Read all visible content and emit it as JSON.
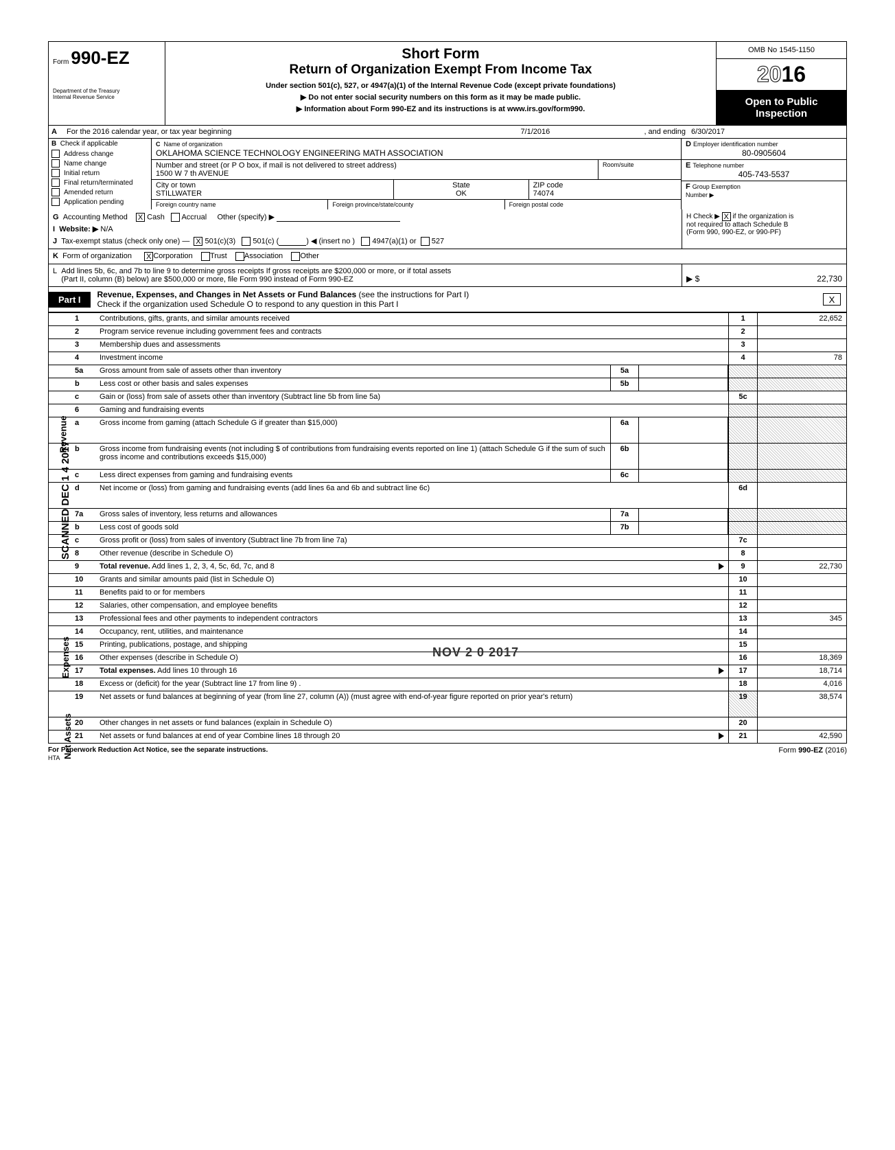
{
  "form": {
    "form_label": "Form",
    "form_number": "990-EZ",
    "dept1": "Department of the Treasury",
    "dept2": "Internal Revenue Service",
    "short_form": "Short Form",
    "main_title": "Return of Organization Exempt From Income Tax",
    "sub1": "Under section 501(c), 527, or 4947(a)(1) of the Internal Revenue Code (except private foundations)",
    "sub2": "Do not enter social security numbers on this form as it may be made public.",
    "sub3": "Information about Form 990-EZ and its instructions is at www.irs.gov/form990.",
    "omb": "OMB No 1545-1150",
    "year": "2016",
    "open_public1": "Open to Public",
    "open_public2": "Inspection"
  },
  "rowA": {
    "label": "A",
    "txt": "For the 2016 calendar year, or tax year beginning",
    "date1": "7/1/2016",
    "mid": ", and ending",
    "date2": "6/30/2017"
  },
  "colB": {
    "label": "B",
    "head": "Check if applicable",
    "items": [
      "Address change",
      "Name change",
      "Initial return",
      "Final return/terminated",
      "Amended return",
      "Application pending"
    ]
  },
  "colC": {
    "label": "C",
    "name_lbl": "Name of organization",
    "name": "OKLAHOMA SCIENCE TECHNOLOGY ENGINEERING MATH ASSOCIATION",
    "addr_lbl": "Number and street (or P O box, if mail is not delivered to street address)",
    "room_lbl": "Room/suite",
    "addr": "1500 W 7 th AVENUE",
    "city_lbl": "City or town",
    "state_lbl": "State",
    "zip_lbl": "ZIP code",
    "city": "STILLWATER",
    "state": "OK",
    "zip": "74074",
    "fc_lbl": "Foreign country name",
    "fp_lbl": "Foreign province/state/county",
    "fz_lbl": "Foreign postal code"
  },
  "colD": {
    "d_lbl": "D",
    "d_txt": "Employer identification number",
    "ein": "80-0905604",
    "e_lbl": "E",
    "e_txt": "Telephone number",
    "phone": "405-743-5537",
    "f_lbl": "F",
    "f_txt": "Group Exemption",
    "f_txt2": "Number ▶"
  },
  "rowG": {
    "g_lbl": "G",
    "g_txt": "Accounting Method",
    "cash": "Cash",
    "accrual": "Accrual",
    "other": "Other (specify) ▶",
    "i_lbl": "I",
    "i_txt": "Website: ▶",
    "website": "N/A",
    "j_lbl": "J",
    "j_txt": "Tax-exempt status (check only one) —",
    "j1": "501(c)(3)",
    "j2": "501(c) (",
    "j3": ") ◀ (insert no )",
    "j4": "4947(a)(1) or",
    "j5": "527",
    "h_lbl": "H",
    "h_txt1": "Check ▶",
    "h_txt2": "if the organization is",
    "h_txt3": "not required to attach Schedule B",
    "h_txt4": "(Form 990, 990-EZ, or 990-PF)"
  },
  "rowK": {
    "k_lbl": "K",
    "k_txt": "Form of organization",
    "corp": "Corporation",
    "trust": "Trust",
    "assoc": "Association",
    "other": "Other"
  },
  "rowL": {
    "l_lbl": "L",
    "l_txt1": "Add lines 5b, 6c, and 7b to line 9 to determine gross receipts  If gross receipts are $200,000 or more, or if total assets",
    "l_txt2": "(Part II, column (B) below) are $500,000 or more, file Form 990 instead of Form 990-EZ",
    "sym": "▶ $",
    "amt": "22,730"
  },
  "part1": {
    "label": "Part I",
    "title": "Revenue, Expenses, and Changes in Net Assets or Fund Balances",
    "paren": "(see the instructions for Part I)",
    "check_txt": "Check if the organization used Schedule O to respond to any question in this Part I",
    "check_val": "X"
  },
  "side_labels": {
    "rev": "Revenue",
    "exp": "Expenses",
    "net": "Net Assets",
    "scanned": "SCANNED DEC 1 4 2017"
  },
  "lines": [
    {
      "n": "1",
      "d": "Contributions, gifts, grants, and similar amounts received",
      "en": "1",
      "ev": "22,652"
    },
    {
      "n": "2",
      "d": "Program service revenue including government fees and contracts",
      "en": "2",
      "ev": ""
    },
    {
      "n": "3",
      "d": "Membership dues and assessments",
      "en": "3",
      "ev": ""
    },
    {
      "n": "4",
      "d": "Investment income",
      "en": "4",
      "ev": "78"
    },
    {
      "n": "5a",
      "d": "Gross amount from sale of assets other than inventory",
      "mn": "5a",
      "mv": "",
      "en": "",
      "ev": "",
      "shade": true
    },
    {
      "n": "b",
      "d": "Less  cost or other basis and sales expenses",
      "mn": "5b",
      "mv": "",
      "en": "",
      "ev": "",
      "shade": true
    },
    {
      "n": "c",
      "d": "Gain or (loss) from sale of assets other than inventory (Subtract line 5b from line 5a)",
      "en": "5c",
      "ev": ""
    },
    {
      "n": "6",
      "d": "Gaming and fundraising events",
      "en": "",
      "ev": "",
      "shade": true
    },
    {
      "n": "a",
      "d": "Gross income from gaming (attach Schedule G if greater than $15,000)",
      "mn": "6a",
      "mv": "",
      "en": "",
      "ev": "",
      "shade": true,
      "tall": true
    },
    {
      "n": "b",
      "d": "Gross income from fundraising events (not including    $            of contributions from fundraising events reported on line 1) (attach Schedule G if the sum of such gross income and contributions exceeds $15,000)",
      "mn": "6b",
      "mv": "",
      "en": "",
      "ev": "",
      "shade": true,
      "tall": true
    },
    {
      "n": "c",
      "d": "Less  direct expenses from gaming and fundraising events",
      "mn": "6c",
      "mv": "",
      "en": "",
      "ev": "",
      "shade": true
    },
    {
      "n": "d",
      "d": "Net income or (loss) from gaming and fundraising events (add lines 6a and 6b and subtract line 6c)",
      "en": "6d",
      "ev": "",
      "tall": true
    },
    {
      "n": "7a",
      "d": "Gross sales of inventory, less returns and allowances",
      "mn": "7a",
      "mv": "",
      "en": "",
      "ev": "",
      "shade": true
    },
    {
      "n": "b",
      "d": "Less  cost of goods sold",
      "mn": "7b",
      "mv": "",
      "en": "",
      "ev": "",
      "shade": true
    },
    {
      "n": "c",
      "d": "Gross profit or (loss) from sales of inventory (Subtract line 7b from line 7a)",
      "en": "7c",
      "ev": ""
    },
    {
      "n": "8",
      "d": "Other revenue (describe in Schedule O)",
      "en": "8",
      "ev": ""
    },
    {
      "n": "9",
      "d": "Total revenue. Add lines 1, 2, 3, 4, 5c, 6d, 7c, and 8",
      "en": "9",
      "ev": "22,730",
      "bold": true,
      "arrow": true
    },
    {
      "n": "10",
      "d": "Grants and similar amounts paid (list in Schedule O)",
      "en": "10",
      "ev": ""
    },
    {
      "n": "11",
      "d": "Benefits paid to or for members",
      "en": "11",
      "ev": ""
    },
    {
      "n": "12",
      "d": "Salaries, other compensation, and employee benefits",
      "en": "12",
      "ev": ""
    },
    {
      "n": "13",
      "d": "Professional fees and other payments to independent contractors",
      "en": "13",
      "ev": "345"
    },
    {
      "n": "14",
      "d": "Occupancy, rent, utilities, and maintenance",
      "en": "14",
      "ev": ""
    },
    {
      "n": "15",
      "d": "Printing, publications, postage, and shipping",
      "en": "15",
      "ev": ""
    },
    {
      "n": "16",
      "d": "Other expenses (describe in Schedule O)",
      "en": "16",
      "ev": "18,369"
    },
    {
      "n": "17",
      "d": "Total expenses. Add lines 10 through 16",
      "en": "17",
      "ev": "18,714",
      "bold": true,
      "arrow": true
    },
    {
      "n": "18",
      "d": "Excess or (deficit) for the year (Subtract line 17 from line 9) .",
      "en": "18",
      "ev": "4,016"
    },
    {
      "n": "19",
      "d": "Net assets or fund balances at beginning of year (from line 27, column (A)) (must agree with end-of-year figure reported on prior year's return)",
      "en": "19",
      "ev": "38,574",
      "tall": true,
      "shadetop": true
    },
    {
      "n": "20",
      "d": "Other changes in net assets or fund balances (explain in Schedule O)",
      "en": "20",
      "ev": ""
    },
    {
      "n": "21",
      "d": "Net assets or fund balances at end of year  Combine lines 18 through 20",
      "en": "21",
      "ev": "42,590",
      "arrow": true
    }
  ],
  "stamps": {
    "received": "NOV 2 0 2017"
  },
  "footer": {
    "left": "For Paperwork Reduction Act Notice, see the separate instructions.",
    "right": "Form 990-EZ (2016)",
    "hta": "HTA"
  },
  "colors": {
    "black": "#000000",
    "white": "#ffffff",
    "shade": "#cccccc"
  }
}
